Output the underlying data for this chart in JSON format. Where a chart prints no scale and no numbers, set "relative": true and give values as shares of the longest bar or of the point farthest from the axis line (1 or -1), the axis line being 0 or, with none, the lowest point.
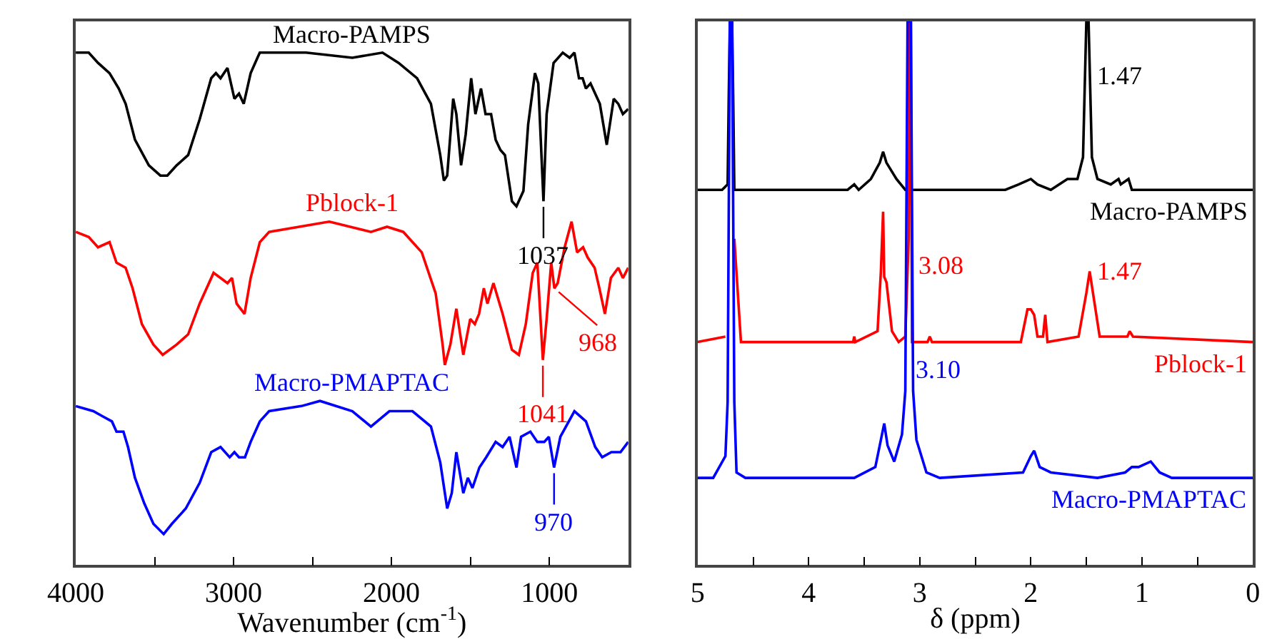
{
  "chart_data": [
    {
      "type": "line",
      "relative": true,
      "xlabel": "Wavenumber (cm$^{-1}$)",
      "xlim": [
        4000,
        500
      ],
      "xticks": [
        4000,
        {
          "value": 3500,
          "label": null
        },
        3000,
        {
          "value": 2500,
          "label": null
        },
        2000,
        {
          "value": 1500,
          "label": null
        },
        1000,
        {
          "value": 500,
          "label": null
        }
      ],
      "marker": "none",
      "line_style": "solid",
      "series": [
        {
          "name": "Macro-PAMPS",
          "color": "#000000",
          "x": [
            4000,
            3918,
            3859,
            3786,
            3728,
            3684,
            3625,
            3537,
            3464,
            3420,
            3361,
            3288,
            3215,
            3142,
            3112,
            3083,
            3039,
            2995,
            2966,
            2936,
            2892,
            2849,
            2834,
            2541,
            2248,
            2057,
            1955,
            1838,
            1750,
            1691,
            1668,
            1647,
            1609,
            1589,
            1559,
            1530,
            1495,
            1468,
            1433,
            1404,
            1369,
            1340,
            1310,
            1281,
            1237,
            1208,
            1164,
            1134,
            1091,
            1070,
            1037,
            1017,
            973,
            915,
            871,
            841,
            812,
            789,
            768,
            739,
            680,
            636,
            592,
            563,
            534,
            500
          ],
          "values": [
            1.0,
            1.0,
            0.98,
            0.96,
            0.93,
            0.9,
            0.83,
            0.78,
            0.76,
            0.76,
            0.78,
            0.8,
            0.87,
            0.95,
            0.96,
            0.95,
            0.97,
            0.91,
            0.92,
            0.9,
            0.96,
            0.99,
            1.0,
            1.0,
            0.99,
            1.0,
            0.98,
            0.95,
            0.9,
            0.8,
            0.75,
            0.76,
            0.91,
            0.88,
            0.78,
            0.84,
            0.95,
            0.88,
            0.93,
            0.88,
            0.88,
            0.83,
            0.81,
            0.8,
            0.71,
            0.7,
            0.73,
            0.86,
            0.96,
            0.94,
            0.71,
            0.88,
            0.98,
            1.0,
            0.99,
            1.0,
            0.95,
            0.95,
            0.93,
            0.94,
            0.9,
            0.82,
            0.91,
            0.9,
            0.88,
            0.89
          ]
        },
        {
          "name": "Pblock-1",
          "color": "#ff0000",
          "x": [
            4000,
            3918,
            3859,
            3786,
            3742,
            3684,
            3640,
            3581,
            3508,
            3449,
            3361,
            3288,
            3215,
            3127,
            3083,
            3039,
            3010,
            2981,
            2931,
            2892,
            2834,
            2775,
            2394,
            2130,
            2028,
            1925,
            1808,
            1720,
            1676,
            1662,
            1627,
            1589,
            1545,
            1501,
            1472,
            1445,
            1415,
            1392,
            1354,
            1296,
            1237,
            1193,
            1149,
            1105,
            1076,
            1041,
            1017,
            988,
            968,
            947,
            903,
            859,
            824,
            786,
            757,
            713,
            683,
            648,
            610,
            563,
            534,
            500
          ],
          "values": [
            0.65,
            0.64,
            0.62,
            0.63,
            0.59,
            0.58,
            0.54,
            0.47,
            0.43,
            0.41,
            0.43,
            0.45,
            0.51,
            0.57,
            0.56,
            0.55,
            0.56,
            0.51,
            0.49,
            0.56,
            0.63,
            0.65,
            0.67,
            0.65,
            0.66,
            0.65,
            0.61,
            0.53,
            0.43,
            0.39,
            0.43,
            0.5,
            0.41,
            0.48,
            0.47,
            0.49,
            0.54,
            0.51,
            0.55,
            0.49,
            0.42,
            0.41,
            0.47,
            0.57,
            0.59,
            0.4,
            0.48,
            0.59,
            0.54,
            0.55,
            0.62,
            0.67,
            0.61,
            0.62,
            0.6,
            0.58,
            0.54,
            0.49,
            0.56,
            0.58,
            0.56,
            0.58
          ]
        },
        {
          "name": "Macro-PMAPTAC",
          "color": "#0000ff",
          "x": [
            4000,
            3889,
            3830,
            3771,
            3742,
            3698,
            3669,
            3625,
            3566,
            3508,
            3443,
            3391,
            3303,
            3215,
            3142,
            3083,
            3025,
            2995,
            2966,
            2928,
            2892,
            2834,
            2775,
            2570,
            2453,
            2248,
            2130,
            2013,
            1867,
            1750,
            1691,
            1647,
            1618,
            1589,
            1545,
            1516,
            1487,
            1443,
            1400,
            1340,
            1296,
            1252,
            1208,
            1179,
            1120,
            1076,
            1032,
            1003,
            970,
            930,
            841,
            768,
            709,
            665,
            607,
            549,
            500
          ],
          "values": [
            0.31,
            0.3,
            0.29,
            0.28,
            0.26,
            0.26,
            0.23,
            0.17,
            0.12,
            0.08,
            0.06,
            0.08,
            0.11,
            0.16,
            0.22,
            0.23,
            0.21,
            0.22,
            0.21,
            0.21,
            0.24,
            0.28,
            0.3,
            0.31,
            0.32,
            0.3,
            0.27,
            0.3,
            0.3,
            0.27,
            0.2,
            0.11,
            0.14,
            0.22,
            0.14,
            0.17,
            0.15,
            0.19,
            0.21,
            0.24,
            0.23,
            0.25,
            0.19,
            0.25,
            0.26,
            0.24,
            0.24,
            0.25,
            0.19,
            0.25,
            0.3,
            0.28,
            0.23,
            0.21,
            0.22,
            0.22,
            0.24
          ]
        }
      ],
      "annotations": [
        {
          "text": "1037",
          "x": 1037,
          "y": 0.71
        },
        {
          "text": "1041",
          "x": 1041,
          "y": 0.4
        },
        {
          "text": "968",
          "x": 968,
          "y": 0.54
        },
        {
          "text": "970",
          "x": 970,
          "y": 0.19
        }
      ]
    },
    {
      "type": "line",
      "relative": true,
      "xlabel": "δ (ppm)",
      "xlim": [
        5,
        0
      ],
      "xticks": [
        5,
        {
          "value": 4.5,
          "label": null
        },
        4,
        {
          "value": 3.5,
          "label": null
        },
        3,
        {
          "value": 2.5,
          "label": null
        },
        2,
        {
          "value": 1.5,
          "label": null
        },
        1,
        {
          "value": 0.5,
          "label": null
        },
        0
      ],
      "marker": "none",
      "line_style": "solid",
      "series": [
        {
          "name": "Macro-PAMPS",
          "color": "#000000",
          "x": [
            5.0,
            4.78,
            4.73,
            4.72,
            4.71,
            4.69,
            4.68,
            4.67,
            4.61,
            3.65,
            3.59,
            3.55,
            3.44,
            3.36,
            3.33,
            3.3,
            3.21,
            3.13,
            3.07,
            2.23,
            2.11,
            2.0,
            1.94,
            1.82,
            1.67,
            1.58,
            1.53,
            1.5,
            1.48,
            1.45,
            1.4,
            1.28,
            1.21,
            1.19,
            1.12,
            1.09,
            0.98,
            0.8,
            0.73,
            0.0
          ],
          "values": [
            0.69,
            0.69,
            0.7,
            0.86,
            1.0,
            1.0,
            0.86,
            0.69,
            0.69,
            0.69,
            0.7,
            0.69,
            0.71,
            0.74,
            0.76,
            0.74,
            0.71,
            0.69,
            0.69,
            0.69,
            0.7,
            0.71,
            0.7,
            0.69,
            0.71,
            0.71,
            0.75,
            1.0,
            1.0,
            0.75,
            0.71,
            0.7,
            0.71,
            0.7,
            0.71,
            0.69,
            0.69,
            0.69,
            0.69,
            0.69
          ]
        },
        {
          "name": "Pblock-1",
          "color": "#ff0000",
          "x": [
            5.0,
            4.75,
            4.72,
            4.71,
            4.69,
            4.67,
            4.61,
            3.6,
            3.59,
            3.58,
            3.38,
            3.35,
            3.33,
            3.32,
            3.3,
            3.25,
            3.19,
            3.13,
            3.1,
            3.09,
            3.08,
            3.07,
            2.93,
            2.91,
            2.89,
            2.09,
            2.03,
            2.0,
            1.97,
            1.94,
            1.89,
            1.87,
            1.85,
            1.57,
            1.5,
            1.47,
            1.44,
            1.38,
            1.13,
            1.11,
            1.08,
            0.0
          ],
          "values": [
            0.41,
            0.42,
            null,
            null,
            null,
            0.6,
            0.41,
            0.41,
            0.42,
            0.41,
            0.43,
            0.54,
            0.65,
            0.53,
            0.52,
            0.43,
            0.41,
            0.42,
            0.6,
            1.0,
            1.0,
            0.41,
            0.41,
            0.42,
            0.41,
            0.41,
            0.47,
            0.47,
            0.46,
            0.42,
            0.42,
            0.46,
            0.41,
            0.42,
            0.5,
            0.54,
            0.5,
            0.42,
            0.42,
            0.43,
            0.42,
            0.41
          ]
        },
        {
          "name": "Macro-PMAPTAC",
          "color": "#0000ff",
          "x": [
            5.0,
            4.86,
            4.75,
            4.73,
            4.71,
            4.69,
            4.67,
            4.65,
            4.57,
            3.59,
            3.4,
            3.35,
            3.32,
            3.29,
            3.23,
            3.16,
            3.13,
            3.11,
            3.08,
            3.06,
            3.03,
            2.94,
            2.82,
            2.07,
            2.0,
            1.97,
            1.92,
            1.82,
            1.4,
            1.15,
            1.09,
            1.03,
            0.92,
            0.84,
            0.73,
            0.0
          ],
          "values": [
            0.16,
            0.16,
            0.2,
            0.3,
            1.0,
            1.0,
            0.3,
            0.17,
            0.16,
            0.16,
            0.18,
            0.23,
            0.26,
            0.22,
            0.19,
            0.24,
            0.32,
            1.0,
            1.0,
            0.32,
            0.23,
            0.17,
            0.16,
            0.17,
            0.2,
            0.21,
            0.18,
            0.17,
            0.16,
            0.17,
            0.18,
            0.18,
            0.19,
            0.17,
            0.16,
            0.16
          ]
        }
      ],
      "annotations": [
        {
          "text": "1.47",
          "x": 1.47,
          "y": 0.9
        },
        {
          "text": "3.08",
          "x": 3.08,
          "y": 0.55
        },
        {
          "text": "1.47",
          "x": 1.47,
          "y": 0.54
        },
        {
          "text": "3.10",
          "x": 3.1,
          "y": 0.36
        }
      ]
    }
  ]
}
